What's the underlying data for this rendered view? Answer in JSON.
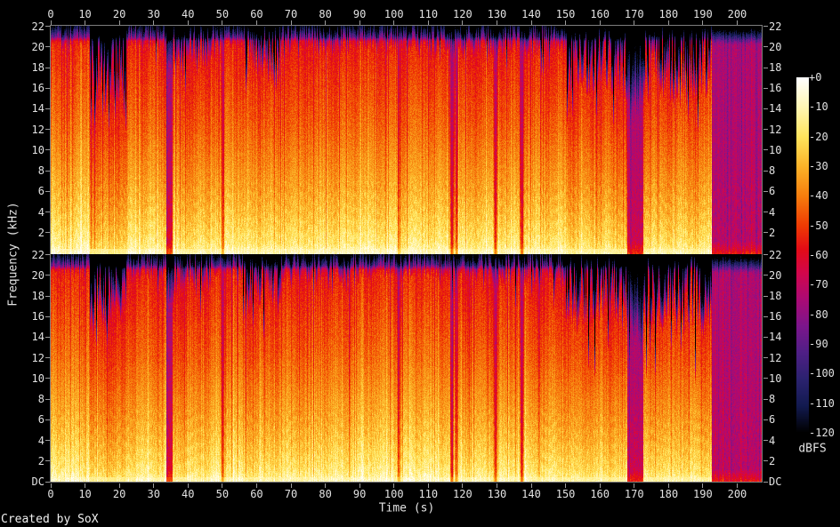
{
  "figure": {
    "footer": "Created by SoX",
    "xlabel": "Time (s)",
    "ylabel": "Frequency (kHz)",
    "colorbar_label": "dBFS"
  },
  "colors": {
    "background": "#000000",
    "label_text": "#e2e2e2",
    "axis_line": "#7d7d7d",
    "tick_mark": "#9a9a9a"
  },
  "chart_data": {
    "type": "heatmap",
    "subtype": "audio-spectrogram",
    "title": "",
    "xlabel": "Time (s)",
    "ylabel": "Frequency (kHz)",
    "legend_position": "right-colorbar",
    "grid": false,
    "channels": [
      "left",
      "right"
    ],
    "x_axis": {
      "unit": "s",
      "min": 0,
      "max": 207.4,
      "ticks": [
        0,
        10,
        20,
        30,
        40,
        50,
        60,
        70,
        80,
        90,
        100,
        110,
        120,
        130,
        140,
        150,
        160,
        170,
        180,
        190,
        200
      ]
    },
    "y_axis": {
      "unit": "kHz",
      "min": 0,
      "max": 22.05,
      "ticks": [
        22,
        20,
        18,
        16,
        14,
        12,
        10,
        8,
        6,
        4,
        2
      ],
      "dc_label": "DC"
    },
    "colorbar": {
      "label": "dBFS",
      "max_db": 0,
      "min_db": -120,
      "tick_labels": [
        "+0",
        "-10",
        "-20",
        "-30",
        "-40",
        "-50",
        "-60",
        "-70",
        "-80",
        "-90",
        "-100",
        "-110",
        "-120"
      ],
      "colormap": [
        {
          "db": 0,
          "color": "#ffffff"
        },
        {
          "db": -10,
          "color": "#fff6b3"
        },
        {
          "db": -20,
          "color": "#ffe45c"
        },
        {
          "db": -30,
          "color": "#fcb328"
        },
        {
          "db": -40,
          "color": "#f67d0d"
        },
        {
          "db": -50,
          "color": "#ef3b03"
        },
        {
          "db": -58,
          "color": "#e30b16"
        },
        {
          "db": -66,
          "color": "#d2064b"
        },
        {
          "db": -75,
          "color": "#ab0a74"
        },
        {
          "db": -84,
          "color": "#7c158b"
        },
        {
          "db": -93,
          "color": "#4f1f86"
        },
        {
          "db": -102,
          "color": "#2b226f"
        },
        {
          "db": -111,
          "color": "#121a50"
        },
        {
          "db": -120,
          "color": "#000000"
        }
      ]
    },
    "spectral_profile_db": [
      [
        0,
        -6
      ],
      [
        0.5,
        -11
      ],
      [
        1,
        -15
      ],
      [
        2,
        -19
      ],
      [
        3,
        -22
      ],
      [
        4,
        -25
      ],
      [
        6,
        -30
      ],
      [
        8,
        -34
      ],
      [
        10,
        -38
      ],
      [
        12,
        -42
      ],
      [
        14,
        -45
      ],
      [
        16,
        -48
      ],
      [
        18,
        -51
      ],
      [
        20,
        -54
      ],
      [
        20.6,
        -57
      ],
      [
        21,
        -78
      ],
      [
        21.5,
        -86
      ],
      [
        22.05,
        -92
      ]
    ],
    "sections": [
      {
        "t0": 0,
        "t1": 11.5,
        "level": 1.0,
        "hf_khz": 20.7,
        "ragged": 0.6,
        "flat": 0
      },
      {
        "t0": 11.5,
        "t1": 22,
        "level": 0.84,
        "hf_khz": 17.2,
        "ragged": 2.6,
        "flat": 0
      },
      {
        "t0": 22,
        "t1": 33.6,
        "level": 0.97,
        "hf_khz": 20.4,
        "ragged": 1.2,
        "flat": 0
      },
      {
        "t0": 33.6,
        "t1": 35.6,
        "level": 0.5,
        "hf_khz": 18.0,
        "ragged": 1.0,
        "flat": 0.55
      },
      {
        "t0": 35.6,
        "t1": 47,
        "level": 0.92,
        "hf_khz": 19.6,
        "ragged": 1.6,
        "flat": 0
      },
      {
        "t0": 47,
        "t1": 56,
        "level": 1.0,
        "hf_khz": 20.6,
        "ragged": 0.8,
        "flat": 0
      },
      {
        "t0": 56,
        "t1": 67,
        "level": 0.93,
        "hf_khz": 18.6,
        "ragged": 2.4,
        "flat": 0
      },
      {
        "t0": 67,
        "t1": 88,
        "level": 0.97,
        "hf_khz": 20.3,
        "ragged": 1.2,
        "flat": 0
      },
      {
        "t0": 88,
        "t1": 116.5,
        "level": 1.0,
        "hf_khz": 20.5,
        "ragged": 1.0,
        "flat": 0
      },
      {
        "t0": 116.5,
        "t1": 129.2,
        "level": 0.95,
        "hf_khz": 20.3,
        "ragged": 1.3,
        "flat": 0
      },
      {
        "t0": 129.2,
        "t1": 150,
        "level": 0.95,
        "hf_khz": 20.2,
        "ragged": 1.5,
        "flat": 0
      },
      {
        "t0": 150,
        "t1": 168,
        "level": 0.9,
        "hf_khz": 18.0,
        "ragged": 3.0,
        "flat": 0
      },
      {
        "t0": 168,
        "t1": 172.6,
        "level": 0.45,
        "hf_khz": 14.5,
        "ragged": 1.5,
        "flat": 0.75
      },
      {
        "t0": 172.6,
        "t1": 192.5,
        "level": 0.92,
        "hf_khz": 17.3,
        "ragged": 3.4,
        "flat": 0
      },
      {
        "t0": 192.5,
        "t1": 205.5,
        "level": 0.38,
        "hf_khz": 20.3,
        "ragged": 0.5,
        "flat": 0.92
      },
      {
        "t0": 205.5,
        "t1": 207.4,
        "level": 0.3,
        "hf_khz": 20.0,
        "ragged": 0.5,
        "flat": 0.95
      }
    ],
    "quiet_gaps": [
      {
        "t": 50.1,
        "strength": 0.55
      },
      {
        "t": 101.5,
        "strength": 0.45
      },
      {
        "t": 116.9,
        "strength": 0.85
      },
      {
        "t": 118.2,
        "strength": 0.55
      },
      {
        "t": 129.6,
        "strength": 0.75
      },
      {
        "t": 137.3,
        "strength": 0.8
      }
    ],
    "noise_db": 5
  }
}
